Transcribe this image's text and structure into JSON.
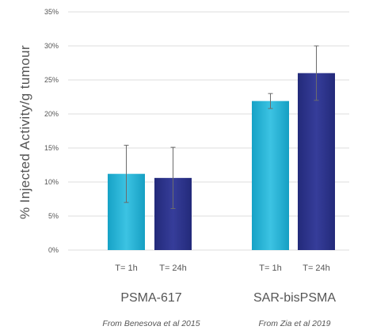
{
  "chart_data": {
    "type": "bar",
    "ylabel": "% Injected Activity/g tumour",
    "xlabel": "",
    "title": "",
    "ylim": [
      0,
      35
    ],
    "yticks": [
      0,
      5,
      10,
      15,
      20,
      25,
      30,
      35
    ],
    "ytick_labels": [
      "0%",
      "5%",
      "10%",
      "15%",
      "20%",
      "25%",
      "30%",
      "35%"
    ],
    "grid": true,
    "groups": [
      {
        "name": "PSMA-617",
        "source": "From Benesova et al 2015",
        "bars": [
          {
            "label": "T= 1h",
            "value": 11.2,
            "error_low": 7.0,
            "error_high": 15.4,
            "color": "#1fa9c9"
          },
          {
            "label": "T= 24h",
            "value": 10.6,
            "error_low": 6.1,
            "error_high": 15.1,
            "color": "#2b3187"
          }
        ]
      },
      {
        "name": "SAR-bisPSMA",
        "source": "From Zia et al 2019",
        "bars": [
          {
            "label": "T= 1h",
            "value": 21.9,
            "error_low": 20.8,
            "error_high": 23.0,
            "color": "#1fa9c9"
          },
          {
            "label": "T= 24h",
            "value": 26.0,
            "error_low": 22.0,
            "error_high": 30.0,
            "color": "#2b3187"
          }
        ]
      }
    ]
  }
}
